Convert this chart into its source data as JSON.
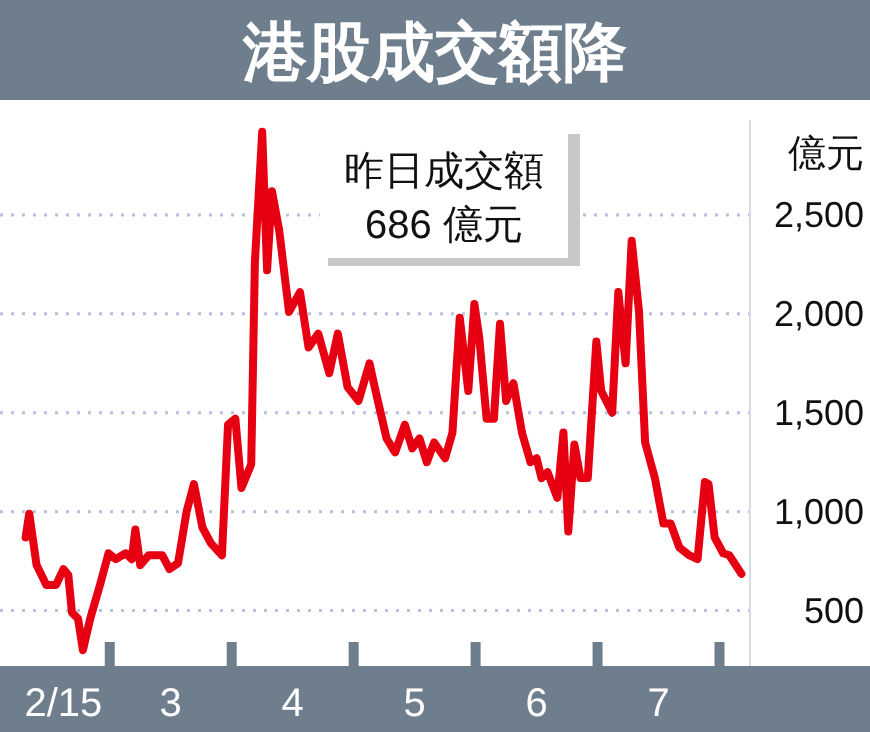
{
  "chart_data": {
    "type": "line",
    "title": "港股成交額降",
    "ylabel": "億元",
    "annotations": [
      "昨日成交額\n686 億元"
    ],
    "xlim": [
      2.1,
      8.25
    ],
    "ylim": [
      220,
      2980
    ],
    "xticks": [
      {
        "value": 2.62,
        "label": "2/15"
      },
      {
        "value": 3,
        "label": null
      },
      {
        "value": 3.5,
        "label": "3"
      },
      {
        "value": 4,
        "label": null
      },
      {
        "value": 4.5,
        "label": "4"
      },
      {
        "value": 5,
        "label": null
      },
      {
        "value": 5.5,
        "label": "5"
      },
      {
        "value": 6,
        "label": null
      },
      {
        "value": 6.5,
        "label": "6"
      },
      {
        "value": 7,
        "label": null
      },
      {
        "value": 7.5,
        "label": "7"
      },
      {
        "value": 8,
        "label": null
      }
    ],
    "yticks": [
      {
        "value": 500,
        "label": "500"
      },
      {
        "value": 1000,
        "label": "1,000"
      },
      {
        "value": 1500,
        "label": "1,500"
      },
      {
        "value": 2000,
        "label": "2,000"
      },
      {
        "value": 2500,
        "label": "2,500"
      }
    ],
    "grid": "y",
    "marker": "none",
    "line_style": "solid",
    "series": [
      {
        "color": "#e60012",
        "x": [
          2.31,
          2.34,
          2.4,
          2.48,
          2.56,
          2.62,
          2.66,
          2.69,
          2.74,
          2.78,
          2.84,
          2.92,
          2.99,
          3.05,
          3.13,
          3.18,
          3.21,
          3.25,
          3.32,
          3.43,
          3.49,
          3.56,
          3.63,
          3.69,
          3.76,
          3.83,
          3.92,
          3.97,
          4.03,
          4.08,
          4.16,
          4.19,
          4.25,
          4.29,
          4.33,
          4.39,
          4.47,
          4.56,
          4.63,
          4.71,
          4.8,
          4.87,
          4.95,
          5.04,
          5.13,
          5.18,
          5.27,
          5.34,
          5.42,
          5.48,
          5.54,
          5.6,
          5.66,
          5.75,
          5.81,
          5.87,
          5.94,
          5.99,
          6.03,
          6.09,
          6.15,
          6.2,
          6.25,
          6.31,
          6.38,
          6.45,
          6.5,
          6.54,
          6.59,
          6.67,
          6.72,
          6.76,
          6.81,
          6.86,
          6.92,
          6.99,
          7.03,
          7.12,
          7.17,
          7.23,
          7.28,
          7.34,
          7.39,
          7.47,
          7.54,
          7.6,
          7.67,
          7.75,
          7.82,
          7.88,
          7.91,
          7.96,
          8.03,
          8.08,
          8.18
        ],
        "values": [
          870,
          990,
          730,
          630,
          630,
          710,
          680,
          490,
          460,
          300,
          460,
          630,
          790,
          760,
          790,
          760,
          910,
          730,
          780,
          780,
          710,
          740,
          1000,
          1140,
          920,
          840,
          780,
          1440,
          1470,
          1120,
          1240,
          2260,
          2920,
          2220,
          2620,
          2420,
          2010,
          2110,
          1830,
          1900,
          1700,
          1900,
          1630,
          1560,
          1750,
          1610,
          1370,
          1300,
          1440,
          1320,
          1370,
          1250,
          1350,
          1270,
          1400,
          1980,
          1610,
          2050,
          1880,
          1470,
          1470,
          1950,
          1560,
          1650,
          1400,
          1250,
          1270,
          1170,
          1200,
          1070,
          1400,
          900,
          1340,
          1170,
          1170,
          1860,
          1610,
          1500,
          2110,
          1750,
          2370,
          2010,
          1350,
          1170,
          940,
          940,
          820,
          780,
          760,
          1150,
          1140,
          870,
          790,
          780,
          686
        ]
      }
    ]
  }
}
